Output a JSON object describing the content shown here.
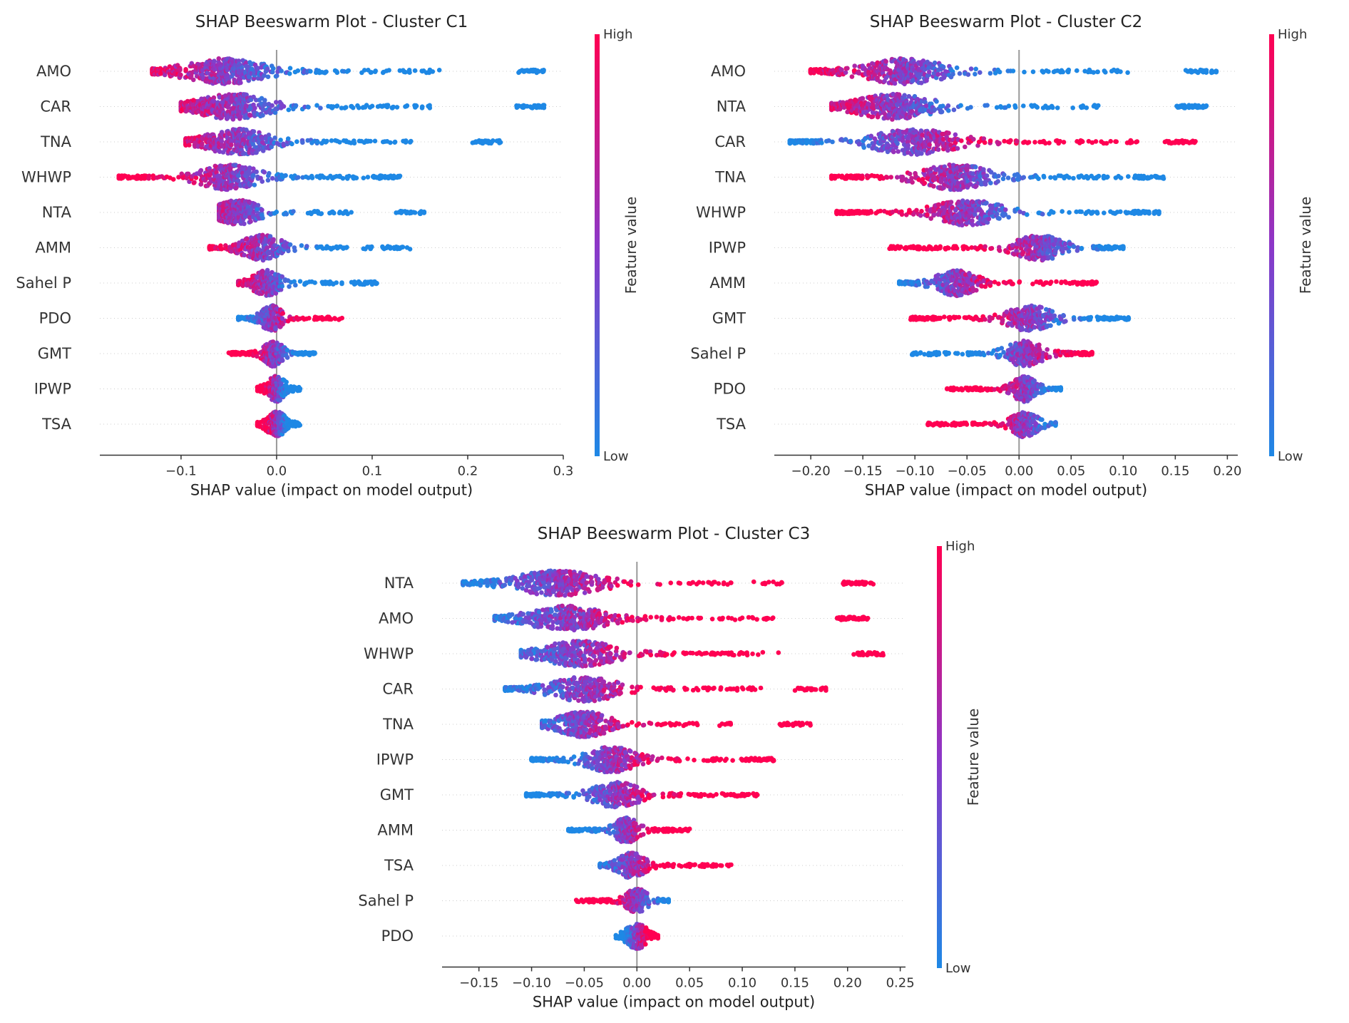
{
  "colors": {
    "low": "#1e88e5",
    "high": "#ff0052",
    "axis": "#333333",
    "zero_line": "#999999",
    "row_grid": "#cccccc"
  },
  "colorbar": {
    "high_label": "High",
    "low_label": "Low",
    "title": "Feature value"
  },
  "chart_data": [
    {
      "type": "scatter",
      "subtype": "beeswarm",
      "title": "SHAP Beeswarm Plot - Cluster C1",
      "xlabel": "SHAP value (impact on model output)",
      "ylabel": "",
      "xlim": [
        -0.185,
        0.3
      ],
      "xticks": [
        -0.1,
        0.0,
        0.1,
        0.2,
        0.3
      ],
      "xtick_labels": [
        "−0.1",
        "0.0",
        "0.1",
        "0.2",
        "0.3"
      ],
      "grid": false,
      "features": [
        {
          "name": "AMO",
          "min": -0.13,
          "max": 0.28,
          "dense_center": -0.055,
          "high_side": "negative"
        },
        {
          "name": "CAR",
          "min": -0.1,
          "max": 0.28,
          "dense_center": -0.045,
          "high_side": "negative"
        },
        {
          "name": "TNA",
          "min": -0.095,
          "max": 0.235,
          "dense_center": -0.04,
          "high_side": "negative"
        },
        {
          "name": "WHWP",
          "min": -0.165,
          "max": 0.13,
          "dense_center": -0.05,
          "high_side": "negative"
        },
        {
          "name": "NTA",
          "min": -0.06,
          "max": 0.155,
          "dense_center": -0.04,
          "high_side": "negative"
        },
        {
          "name": "AMM",
          "min": -0.07,
          "max": 0.14,
          "dense_center": -0.015,
          "high_side": "negative"
        },
        {
          "name": "Sahel P",
          "min": -0.04,
          "max": 0.105,
          "dense_center": -0.01,
          "high_side": "negative"
        },
        {
          "name": "PDO",
          "min": -0.04,
          "max": 0.07,
          "dense_center": -0.005,
          "high_side": "positive"
        },
        {
          "name": "GMT",
          "min": -0.05,
          "max": 0.04,
          "dense_center": -0.003,
          "high_side": "negative"
        },
        {
          "name": "IPWP",
          "min": -0.02,
          "max": 0.025,
          "dense_center": 0.0,
          "high_side": "negative"
        },
        {
          "name": "TSA",
          "min": -0.02,
          "max": 0.025,
          "dense_center": 0.0,
          "high_side": "negative"
        }
      ]
    },
    {
      "type": "scatter",
      "subtype": "beeswarm",
      "title": "SHAP Beeswarm Plot - Cluster C2",
      "xlabel": "SHAP value (impact on model output)",
      "ylabel": "",
      "xlim": [
        -0.235,
        0.21
      ],
      "xticks": [
        -0.2,
        -0.15,
        -0.1,
        -0.05,
        0.0,
        0.05,
        0.1,
        0.15,
        0.2
      ],
      "xtick_labels": [
        "−0.20",
        "−0.15",
        "−0.10",
        "−0.05",
        "0.00",
        "0.05",
        "0.10",
        "0.15",
        "0.20"
      ],
      "grid": false,
      "features": [
        {
          "name": "AMO",
          "min": -0.2,
          "max": 0.19,
          "dense_center": -0.11,
          "high_side": "negative"
        },
        {
          "name": "NTA",
          "min": -0.18,
          "max": 0.18,
          "dense_center": -0.12,
          "high_side": "negative"
        },
        {
          "name": "CAR",
          "min": -0.22,
          "max": 0.17,
          "dense_center": -0.1,
          "high_side": "positive"
        },
        {
          "name": "TNA",
          "min": -0.18,
          "max": 0.14,
          "dense_center": -0.06,
          "high_side": "negative"
        },
        {
          "name": "WHWP",
          "min": -0.175,
          "max": 0.135,
          "dense_center": -0.05,
          "high_side": "negative"
        },
        {
          "name": "IPWP",
          "min": -0.125,
          "max": 0.1,
          "dense_center": 0.02,
          "high_side": "negative"
        },
        {
          "name": "AMM",
          "min": -0.115,
          "max": 0.075,
          "dense_center": -0.06,
          "high_side": "positive"
        },
        {
          "name": "GMT",
          "min": -0.105,
          "max": 0.105,
          "dense_center": 0.01,
          "high_side": "negative"
        },
        {
          "name": "Sahel P",
          "min": -0.105,
          "max": 0.07,
          "dense_center": 0.005,
          "high_side": "positive"
        },
        {
          "name": "PDO",
          "min": -0.07,
          "max": 0.04,
          "dense_center": 0.005,
          "high_side": "negative"
        },
        {
          "name": "TSA",
          "min": -0.09,
          "max": 0.035,
          "dense_center": 0.005,
          "high_side": "negative"
        }
      ]
    },
    {
      "type": "scatter",
      "subtype": "beeswarm",
      "title": "SHAP Beeswarm Plot - Cluster C3",
      "xlabel": "SHAP value (impact on model output)",
      "ylabel": "",
      "xlim": [
        -0.185,
        0.255
      ],
      "xticks": [
        -0.15,
        -0.1,
        -0.05,
        0.0,
        0.05,
        0.1,
        0.15,
        0.2,
        0.25
      ],
      "xtick_labels": [
        "−0.15",
        "−0.10",
        "−0.05",
        "0.00",
        "0.05",
        "0.10",
        "0.15",
        "0.20",
        "0.25"
      ],
      "grid": false,
      "features": [
        {
          "name": "NTA",
          "min": -0.165,
          "max": 0.225,
          "dense_center": -0.075,
          "high_side": "positive"
        },
        {
          "name": "AMO",
          "min": -0.135,
          "max": 0.22,
          "dense_center": -0.065,
          "high_side": "positive"
        },
        {
          "name": "WHWP",
          "min": -0.11,
          "max": 0.235,
          "dense_center": -0.055,
          "high_side": "positive"
        },
        {
          "name": "CAR",
          "min": -0.125,
          "max": 0.18,
          "dense_center": -0.05,
          "high_side": "positive"
        },
        {
          "name": "TNA",
          "min": -0.09,
          "max": 0.165,
          "dense_center": -0.05,
          "high_side": "positive"
        },
        {
          "name": "IPWP",
          "min": -0.1,
          "max": 0.13,
          "dense_center": -0.025,
          "high_side": "positive"
        },
        {
          "name": "GMT",
          "min": -0.105,
          "max": 0.115,
          "dense_center": -0.02,
          "high_side": "positive"
        },
        {
          "name": "AMM",
          "min": -0.065,
          "max": 0.05,
          "dense_center": -0.01,
          "high_side": "positive"
        },
        {
          "name": "TSA",
          "min": -0.035,
          "max": 0.09,
          "dense_center": -0.005,
          "high_side": "positive"
        },
        {
          "name": "Sahel P",
          "min": -0.06,
          "max": 0.03,
          "dense_center": 0.0,
          "high_side": "negative"
        },
        {
          "name": "PDO",
          "min": -0.02,
          "max": 0.02,
          "dense_center": 0.0,
          "high_side": "positive"
        }
      ]
    }
  ]
}
